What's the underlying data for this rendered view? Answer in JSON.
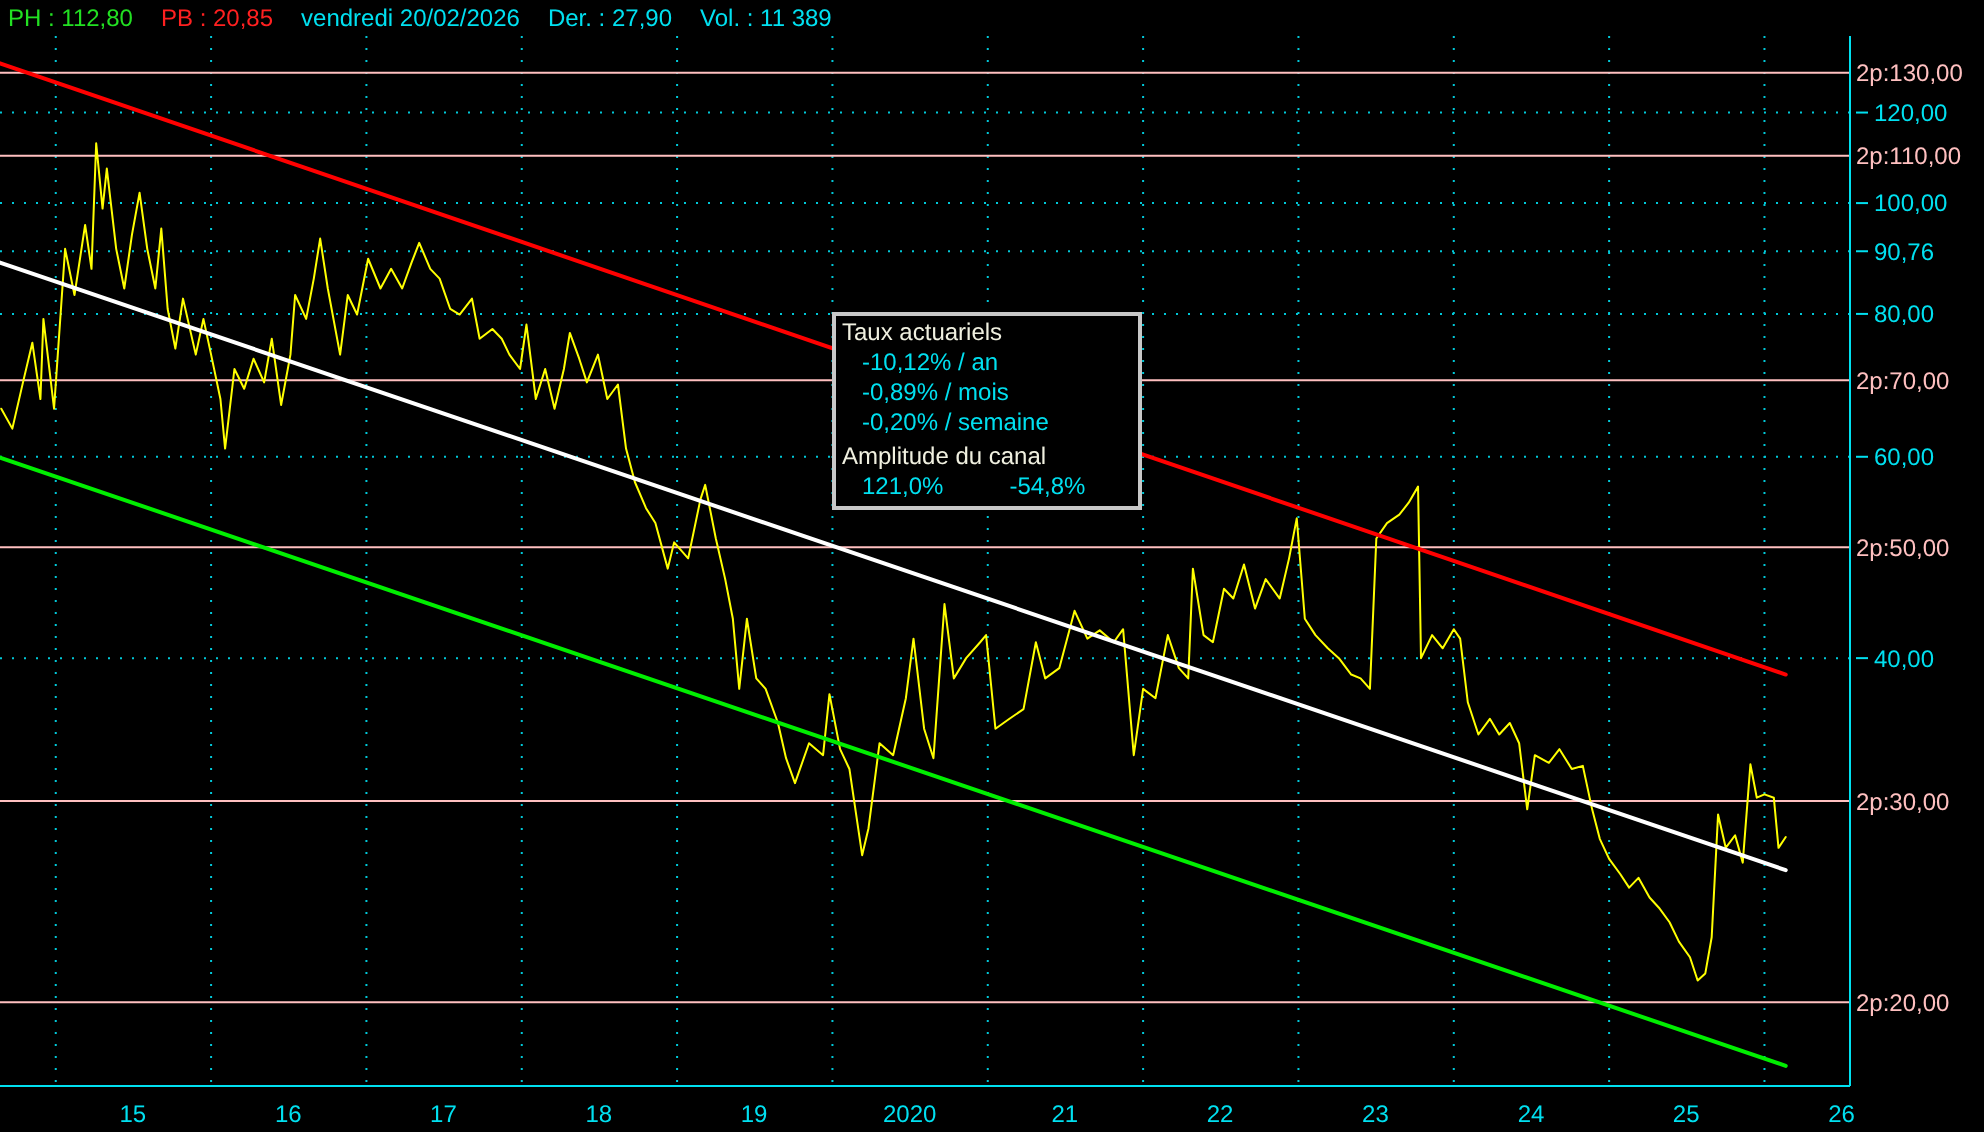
{
  "chart_data": {
    "type": "line",
    "annotations": [
      "PH : 112,80",
      "PB : 20,85",
      "vendredi 20/02/2026",
      "Der. : 27,90",
      "Vol. : 11 389",
      "Taux actuariels",
      "-10,12% / an",
      "-0,89% / mois",
      "-0,20% / semaine",
      "Amplitude du canal",
      "121,0%",
      "-54,8%"
    ],
    "xlim": [
      "2014-08-23",
      "2026-07-21"
    ],
    "xticks": [
      {
        "value": "2015-01-01",
        "label": null
      },
      {
        "value": "2015-07-01",
        "label": "15"
      },
      {
        "value": "2016-01-01",
        "label": null
      },
      {
        "value": "2016-07-01",
        "label": "16"
      },
      {
        "value": "2017-01-01",
        "label": null
      },
      {
        "value": "2017-07-01",
        "label": "17"
      },
      {
        "value": "2018-01-01",
        "label": null
      },
      {
        "value": "2018-07-01",
        "label": "18"
      },
      {
        "value": "2019-01-01",
        "label": null
      },
      {
        "value": "2019-07-01",
        "label": "19"
      },
      {
        "value": "2020-01-01",
        "label": null
      },
      {
        "value": "2020-07-01",
        "label": "2020"
      },
      {
        "value": "2021-01-01",
        "label": null
      },
      {
        "value": "2021-07-01",
        "label": "21"
      },
      {
        "value": "2022-01-01",
        "label": null
      },
      {
        "value": "2022-07-01",
        "label": "22"
      },
      {
        "value": "2023-01-01",
        "label": null
      },
      {
        "value": "2023-07-01",
        "label": "23"
      },
      {
        "value": "2024-01-01",
        "label": null
      },
      {
        "value": "2024-07-01",
        "label": "24"
      },
      {
        "value": "2025-01-01",
        "label": null
      },
      {
        "value": "2025-07-01",
        "label": "25"
      },
      {
        "value": "2026-01-01",
        "label": null
      },
      {
        "value": "2026-07-01",
        "label": "26"
      }
    ],
    "ylim": [
      16.9,
      140
    ],
    "yticks": [
      {
        "value": 40,
        "label": "40,00"
      },
      {
        "value": 60,
        "label": "60,00"
      },
      {
        "value": 80,
        "label": "80,00"
      },
      {
        "value": 90.76,
        "label": "90,76"
      },
      {
        "value": 100,
        "label": "100,00"
      },
      {
        "value": 120,
        "label": "120,00"
      }
    ],
    "log": true,
    "grid": true,
    "ref_lines": [
      {
        "axis": "y",
        "value": 130,
        "label": "2p:130,00",
        "color": "#ffc0c0"
      },
      {
        "axis": "y",
        "value": 110,
        "label": "2p:110,00",
        "color": "#ffc0c0"
      },
      {
        "axis": "y",
        "value": 70,
        "label": "2p:70,00",
        "color": "#ffc0c0"
      },
      {
        "axis": "y",
        "value": 50,
        "label": "2p:50,00",
        "color": "#ffc0c0"
      },
      {
        "axis": "y",
        "value": 30,
        "label": "2p:30,00",
        "color": "#ffc0c0"
      },
      {
        "axis": "y",
        "value": 20,
        "label": "2p:20,00",
        "color": "#ffc0c0"
      }
    ],
    "series": [
      {
        "color": "#ffff00",
        "x": [
          "2014-08-26",
          "2014-09-21",
          "2014-10-16",
          "2014-11-07",
          "2014-11-26",
          "2014-12-03",
          "2014-12-28",
          "2015-01-23",
          "2015-02-14",
          "2015-03-11",
          "2015-03-26",
          "2015-04-06",
          "2015-04-21",
          "2015-05-01",
          "2015-05-23",
          "2015-06-11",
          "2015-06-29",
          "2015-07-17",
          "2015-08-04",
          "2015-08-23",
          "2015-09-06",
          "2015-09-21",
          "2015-10-09",
          "2015-10-27",
          "2015-11-26",
          "2015-12-14",
          "2016-01-01",
          "2016-01-23",
          "2016-02-03",
          "2016-02-25",
          "2016-03-19",
          "2016-04-10",
          "2016-05-05",
          "2016-05-23",
          "2016-06-14",
          "2016-07-06",
          "2016-07-17",
          "2016-08-12",
          "2016-08-30",
          "2016-09-14",
          "2016-10-02",
          "2016-10-31",
          "2016-11-18",
          "2016-12-10",
          "2017-01-05",
          "2017-02-03",
          "2017-02-28",
          "2017-03-26",
          "2017-04-17",
          "2017-05-05",
          "2017-05-31",
          "2017-06-22",
          "2017-07-17",
          "2017-08-08",
          "2017-09-06",
          "2017-09-24",
          "2017-10-24",
          "2017-11-15",
          "2017-12-03",
          "2017-12-28",
          "2018-01-12",
          "2018-02-03",
          "2018-02-25",
          "2018-03-19",
          "2018-04-10",
          "2018-04-24",
          "2018-05-16",
          "2018-06-03",
          "2018-06-29",
          "2018-07-21",
          "2018-08-15",
          "2018-09-03",
          "2018-09-24",
          "2018-10-20",
          "2018-11-11",
          "2018-12-10",
          "2018-12-25",
          "2019-01-27",
          "2019-02-25",
          "2019-03-08",
          "2019-04-02",
          "2019-04-24",
          "2019-05-12",
          "2019-05-27",
          "2019-06-14",
          "2019-07-06",
          "2019-07-28",
          "2019-08-26",
          "2019-09-14",
          "2019-10-05",
          "2019-11-07",
          "2019-12-10",
          "2019-12-25",
          "2020-01-19",
          "2020-02-10",
          "2020-03-11",
          "2020-03-26",
          "2020-04-21",
          "2020-05-23",
          "2020-06-22",
          "2020-07-10",
          "2020-08-04",
          "2020-08-26",
          "2020-09-21",
          "2020-10-13",
          "2020-11-11",
          "2020-12-14",
          "2020-12-28",
          "2021-01-19",
          "2021-02-21",
          "2021-03-26",
          "2021-04-24",
          "2021-05-16",
          "2021-06-18",
          "2021-07-24",
          "2021-08-23",
          "2021-09-21",
          "2021-10-24",
          "2021-11-15",
          "2021-12-10",
          "2022-01-01",
          "2022-01-30",
          "2022-02-28",
          "2022-03-26",
          "2022-04-17",
          "2022-04-28",
          "2022-05-23",
          "2022-06-14",
          "2022-07-10",
          "2022-08-01",
          "2022-08-26",
          "2022-09-21",
          "2022-10-16",
          "2022-11-18",
          "2022-12-10",
          "2022-12-28",
          "2023-01-16",
          "2023-02-10",
          "2023-03-11",
          "2023-04-06",
          "2023-05-05",
          "2023-05-27",
          "2023-06-18",
          "2023-07-03",
          "2023-07-28",
          "2023-08-26",
          "2023-09-17",
          "2023-10-09",
          "2023-10-16",
          "2023-11-11",
          "2023-12-06",
          "2024-01-01",
          "2024-01-16",
          "2024-02-03",
          "2024-02-28",
          "2024-03-26",
          "2024-04-17",
          "2024-05-12",
          "2024-06-03",
          "2024-06-22",
          "2024-07-10",
          "2024-08-12",
          "2024-09-06",
          "2024-10-05",
          "2024-10-31",
          "2024-11-22",
          "2024-12-10",
          "2025-01-01",
          "2025-01-27",
          "2025-02-17",
          "2025-03-11",
          "2025-04-06",
          "2025-04-28",
          "2025-05-23",
          "2025-06-14",
          "2025-07-10",
          "2025-07-28",
          "2025-08-15",
          "2025-08-30",
          "2025-09-14",
          "2025-10-02",
          "2025-10-24",
          "2025-11-11",
          "2025-11-29",
          "2025-12-14",
          "2026-01-01",
          "2026-01-23",
          "2026-02-03",
          "2026-02-20"
        ],
        "values": [
          66.1,
          63.5,
          69.7,
          75.5,
          67.4,
          79.2,
          66.1,
          91.2,
          83.1,
          95.7,
          87.6,
          112.8,
          98.9,
          107.2,
          91.2,
          84.2,
          93.8,
          102.1,
          91.2,
          84.2,
          95.0,
          80.8,
          74.6,
          82.5,
          73.7,
          79.2,
          73.7,
          67.4,
          61.0,
          71.6,
          68.8,
          73.1,
          69.7,
          76.1,
          66.6,
          73.7,
          83.1,
          79.2,
          85.9,
          93.1,
          84.2,
          73.7,
          83.1,
          79.9,
          89.4,
          84.2,
          87.6,
          84.2,
          88.7,
          92.3,
          87.6,
          85.9,
          80.8,
          79.9,
          82.5,
          76.1,
          77.6,
          76.1,
          73.7,
          71.6,
          78.3,
          67.4,
          71.6,
          66.1,
          71.6,
          77.0,
          73.1,
          69.7,
          73.7,
          67.4,
          69.4,
          61.0,
          57.0,
          54.1,
          52.5,
          47.9,
          50.5,
          48.9,
          55.1,
          56.7,
          50.9,
          46.9,
          43.3,
          37.6,
          43.3,
          38.4,
          37.6,
          35.1,
          32.7,
          31.1,
          33.7,
          32.9,
          37.2,
          33.3,
          32.0,
          26.9,
          28.4,
          33.7,
          32.9,
          36.9,
          41.6,
          34.7,
          32.7,
          44.6,
          38.4,
          40.0,
          41.3,
          41.9,
          34.7,
          35.4,
          36.1,
          41.3,
          38.4,
          39.2,
          44.0,
          41.6,
          42.3,
          41.3,
          42.4,
          32.9,
          37.6,
          36.9,
          41.9,
          39.2,
          38.4,
          47.9,
          41.9,
          41.3,
          46.0,
          45.1,
          48.3,
          44.2,
          46.9,
          45.1,
          48.9,
          53.0,
          43.3,
          41.9,
          40.8,
          40.0,
          38.7,
          38.4,
          37.6,
          50.9,
          52.5,
          53.4,
          54.7,
          56.5,
          40.0,
          41.9,
          40.8,
          42.4,
          41.6,
          36.6,
          34.3,
          35.4,
          34.3,
          35.1,
          33.7,
          29.5,
          32.9,
          32.4,
          33.3,
          32.0,
          32.2,
          29.5,
          27.8,
          26.7,
          25.9,
          25.2,
          25.7,
          24.7,
          24.2,
          23.5,
          22.6,
          21.9,
          20.9,
          21.2,
          22.8,
          29.2,
          27.3,
          28.0,
          26.5,
          32.3,
          30.2,
          30.4,
          30.2,
          27.3,
          27.9
        ]
      },
      {
        "color": "#ff0000",
        "x": [
          "2014-08-23",
          "2026-02-20"
        ],
        "values": [
          132.5,
          38.7
        ]
      },
      {
        "color": "#ffffff",
        "x": [
          "2014-08-23",
          "2026-02-20"
        ],
        "values": [
          88.7,
          26.1
        ]
      },
      {
        "color": "#00ee00",
        "x": [
          "2014-08-23",
          "2026-02-20"
        ],
        "values": [
          59.9,
          17.6
        ]
      }
    ]
  }
}
